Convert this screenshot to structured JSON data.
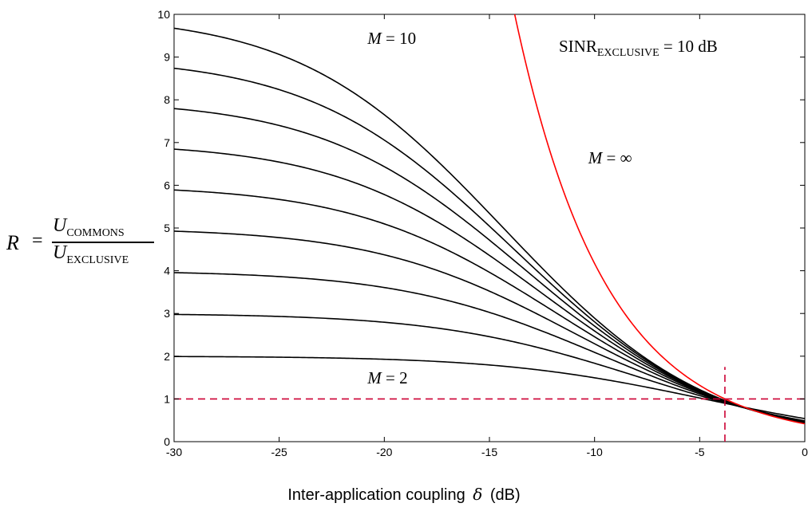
{
  "chart_data": {
    "type": "line",
    "title": "",
    "annotation": {
      "prefix": "SINR",
      "subscript": "EXCLUSIVE",
      "suffix": " = 10 dB"
    },
    "ylabel": {
      "lhs": "R",
      "eq": "=",
      "num_var": "U",
      "num_sub": "COMMONS",
      "den_var": "U",
      "den_sub": "EXCLUSIVE"
    },
    "xlabel": {
      "before": "Inter-application coupling",
      "symbol": "δ",
      "after": "(dB)"
    },
    "xlim": [
      -30,
      0
    ],
    "ylim": [
      0,
      10
    ],
    "x_ticks": [
      "-30",
      "-25",
      "-20",
      "-15",
      "-10",
      "-5",
      "0"
    ],
    "y_ticks": [
      "0",
      "1",
      "2",
      "3",
      "4",
      "5",
      "6",
      "7",
      "8",
      "9",
      "10"
    ],
    "series": [
      {
        "name": "M = 2",
        "color": "#000000",
        "M": 2
      },
      {
        "M": 3,
        "color": "#000000"
      },
      {
        "M": 4,
        "color": "#000000"
      },
      {
        "M": 5,
        "color": "#000000"
      },
      {
        "M": 6,
        "color": "#000000"
      },
      {
        "M": 7,
        "color": "#000000"
      },
      {
        "M": 8,
        "color": "#000000"
      },
      {
        "M": 9,
        "color": "#000000"
      },
      {
        "name": "M = 10",
        "color": "#000000",
        "M": 10
      },
      {
        "name": "M = ∞",
        "color": "#ff0000",
        "M": "inf"
      }
    ],
    "curve_labels": [
      {
        "var": "M",
        "rest": " = 10",
        "at": [
          -20.8,
          9.4
        ]
      },
      {
        "var": "M",
        "rest": " = ∞",
        "at": [
          -10.3,
          6.6
        ]
      },
      {
        "var": "M",
        "rest": " = 2",
        "at": [
          -20.8,
          1.45
        ]
      }
    ],
    "reference_lines": [
      {
        "orientation": "horizontal",
        "y": 1,
        "color": "#cc0033",
        "style": "dashed"
      },
      {
        "orientation": "vertical",
        "x": -3.8,
        "color": "#cc0033",
        "style": "dashed",
        "y_range": [
          0,
          1.75
        ]
      }
    ],
    "grid": false,
    "legend": "none"
  }
}
